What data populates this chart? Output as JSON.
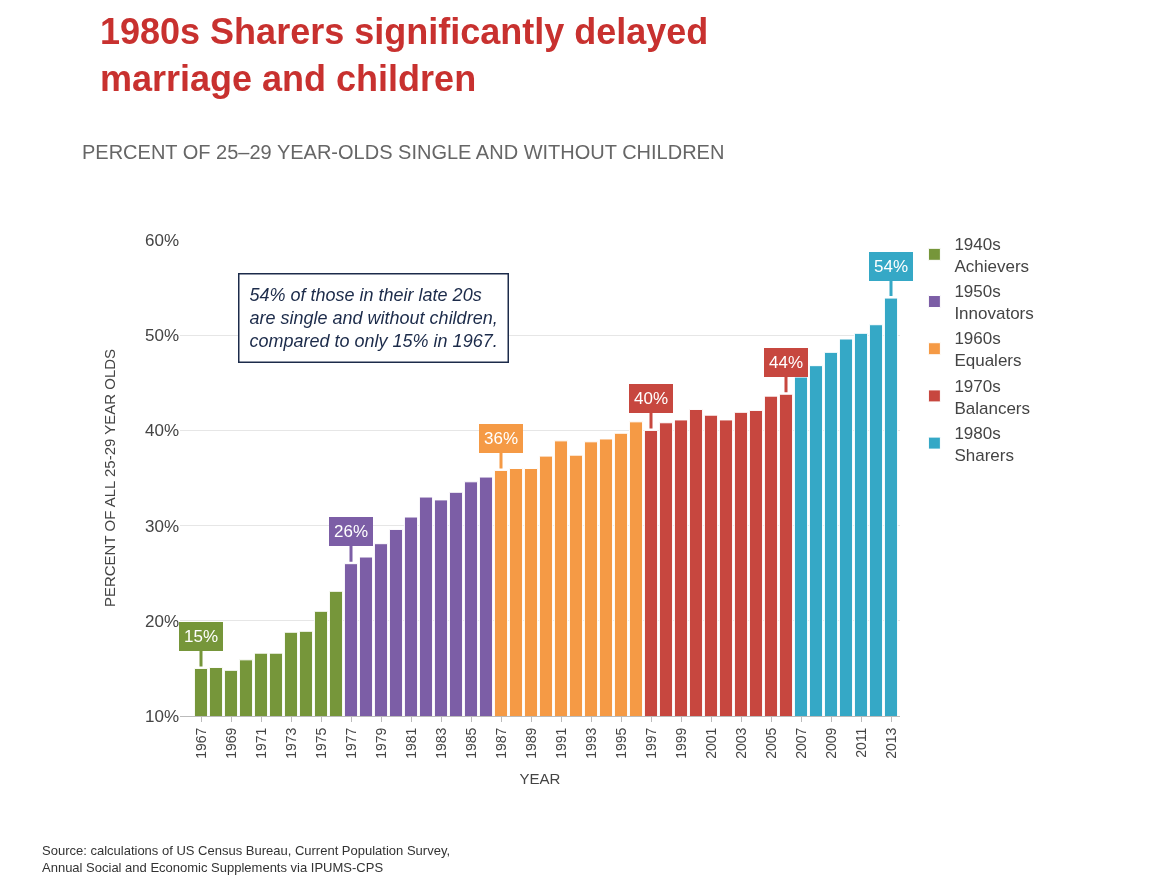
{
  "chart_data": {
    "type": "bar",
    "title": "1980s Sharers significantly delayed marriage and children",
    "subtitle": "PERCENT OF 25–29 YEAR-OLDS SINGLE AND WITHOUT CHILDREN",
    "xlabel": "YEAR",
    "ylabel": "PERCENT OF ALL 25-29 YEAR OLDS",
    "categories": [
      "1967",
      null,
      "1969",
      null,
      "1971",
      null,
      "1973",
      null,
      "1975",
      null,
      "1977",
      null,
      "1979",
      null,
      "1981",
      null,
      "1983",
      null,
      "1985",
      null,
      "1987",
      null,
      "1989",
      null,
      "1991",
      null,
      "1993",
      null,
      "1995",
      null,
      "1997",
      null,
      "1999",
      null,
      "2001",
      null,
      "2003",
      null,
      "2005",
      null,
      "2007",
      null,
      "2009",
      null,
      "2011",
      null,
      "2013"
    ],
    "series": [
      {
        "name": "1940s Achievers",
        "color": "#76963a",
        "values": [
          15.0,
          15.1,
          14.8,
          15.9,
          16.6,
          16.6,
          18.8,
          18.9,
          21.0,
          23.1,
          null,
          null,
          null,
          null,
          null,
          null,
          null,
          null,
          null,
          null,
          null,
          null,
          null,
          null,
          null,
          null,
          null,
          null,
          null,
          null,
          null,
          null,
          null,
          null,
          null,
          null,
          null,
          null,
          null,
          null,
          null,
          null,
          null,
          null,
          null,
          null,
          null
        ],
        "value_labels": [
          "15%",
          null,
          null,
          null,
          null,
          null,
          null,
          null,
          null,
          null,
          null,
          null,
          null,
          null,
          null,
          null,
          null,
          null,
          null,
          null,
          null,
          null,
          null,
          null,
          null,
          null,
          null,
          null,
          null,
          null,
          null,
          null,
          null,
          null,
          null,
          null,
          null,
          null,
          null,
          null,
          null,
          null,
          null,
          null,
          null,
          null,
          null
        ]
      },
      {
        "name": "1950s Innovators",
        "color": "#7c5ea6",
        "values": [
          null,
          null,
          null,
          null,
          null,
          null,
          null,
          null,
          null,
          null,
          26.0,
          26.7,
          28.1,
          29.6,
          30.9,
          33.0,
          32.7,
          33.5,
          34.6,
          35.1,
          null,
          null,
          null,
          null,
          null,
          null,
          null,
          null,
          null,
          null,
          null,
          null,
          null,
          null,
          null,
          null,
          null,
          null,
          null,
          null,
          null,
          null,
          null,
          null,
          null,
          null,
          null
        ],
        "value_labels": [
          null,
          null,
          null,
          null,
          null,
          null,
          null,
          null,
          null,
          null,
          "26%",
          null,
          null,
          null,
          null,
          null,
          null,
          null,
          null,
          null,
          null,
          null,
          null,
          null,
          null,
          null,
          null,
          null,
          null,
          null,
          null,
          null,
          null,
          null,
          null,
          null,
          null,
          null,
          null,
          null,
          null,
          null,
          null,
          null,
          null,
          null,
          null
        ]
      },
      {
        "name": "1960s Equalers",
        "color": "#f59a45",
        "values": [
          null,
          null,
          null,
          null,
          null,
          null,
          null,
          null,
          null,
          null,
          null,
          null,
          null,
          null,
          null,
          null,
          null,
          null,
          null,
          null,
          35.8,
          36.0,
          36.0,
          37.3,
          38.9,
          37.4,
          38.8,
          39.1,
          39.7,
          40.9,
          null,
          null,
          null,
          null,
          null,
          null,
          null,
          null,
          null,
          null,
          null,
          null,
          null,
          null,
          null,
          null,
          null
        ],
        "value_labels": [
          null,
          null,
          null,
          null,
          null,
          null,
          null,
          null,
          null,
          null,
          null,
          null,
          null,
          null,
          null,
          null,
          null,
          null,
          null,
          null,
          "36%",
          null,
          null,
          null,
          null,
          null,
          null,
          null,
          null,
          null,
          null,
          null,
          null,
          null,
          null,
          null,
          null,
          null,
          null,
          null,
          null,
          null,
          null,
          null,
          null,
          null,
          null
        ]
      },
      {
        "name": "1970s Balancers",
        "color": "#c7473f",
        "values": [
          null,
          null,
          null,
          null,
          null,
          null,
          null,
          null,
          null,
          null,
          null,
          null,
          null,
          null,
          null,
          null,
          null,
          null,
          null,
          null,
          null,
          null,
          null,
          null,
          null,
          null,
          null,
          null,
          null,
          null,
          40.0,
          40.8,
          41.1,
          42.2,
          41.6,
          41.1,
          41.9,
          42.1,
          43.6,
          43.8,
          null,
          null,
          null,
          null,
          null,
          null,
          null
        ],
        "value_labels": [
          null,
          null,
          null,
          null,
          null,
          null,
          null,
          null,
          null,
          null,
          null,
          null,
          null,
          null,
          null,
          null,
          null,
          null,
          null,
          null,
          null,
          null,
          null,
          null,
          null,
          null,
          null,
          null,
          null,
          null,
          "40%",
          null,
          null,
          null,
          null,
          null,
          null,
          null,
          null,
          "44%",
          null,
          null,
          null,
          null,
          null,
          null,
          null
        ]
      },
      {
        "name": "1980s Sharers",
        "color": "#35a8c6",
        "values": [
          null,
          null,
          null,
          null,
          null,
          null,
          null,
          null,
          null,
          null,
          null,
          null,
          null,
          null,
          null,
          null,
          null,
          null,
          null,
          null,
          null,
          null,
          null,
          null,
          null,
          null,
          null,
          null,
          null,
          null,
          null,
          null,
          null,
          null,
          null,
          null,
          null,
          null,
          null,
          null,
          45.6,
          46.8,
          48.2,
          49.6,
          50.2,
          51.1,
          53.9
        ],
        "value_labels": [
          null,
          null,
          null,
          null,
          null,
          null,
          null,
          null,
          null,
          null,
          null,
          null,
          null,
          null,
          null,
          null,
          null,
          null,
          null,
          null,
          null,
          null,
          null,
          null,
          null,
          null,
          null,
          null,
          null,
          null,
          null,
          null,
          null,
          null,
          null,
          null,
          null,
          null,
          null,
          null,
          null,
          null,
          null,
          null,
          null,
          null,
          "54%"
        ]
      }
    ],
    "ylim": [
      10,
      60
    ],
    "yticks": [
      {
        "value": 10,
        "label": "10%"
      },
      {
        "value": 20,
        "label": "20%"
      },
      {
        "value": 30,
        "label": "30%"
      },
      {
        "value": 40,
        "label": "40%"
      },
      {
        "value": 50,
        "label": "50%"
      },
      {
        "value": 60,
        "label": "60%"
      }
    ],
    "grid": "y",
    "legend": "right",
    "annotations": [
      "54% of those in their late 20s\nare single and without children,\ncompared to only 15% in 1967.",
      "Source: calculations of US Census Bureau, Current Population Survey,\nAnnual Social and Economic Supplements via IPUMS-CPS"
    ]
  }
}
